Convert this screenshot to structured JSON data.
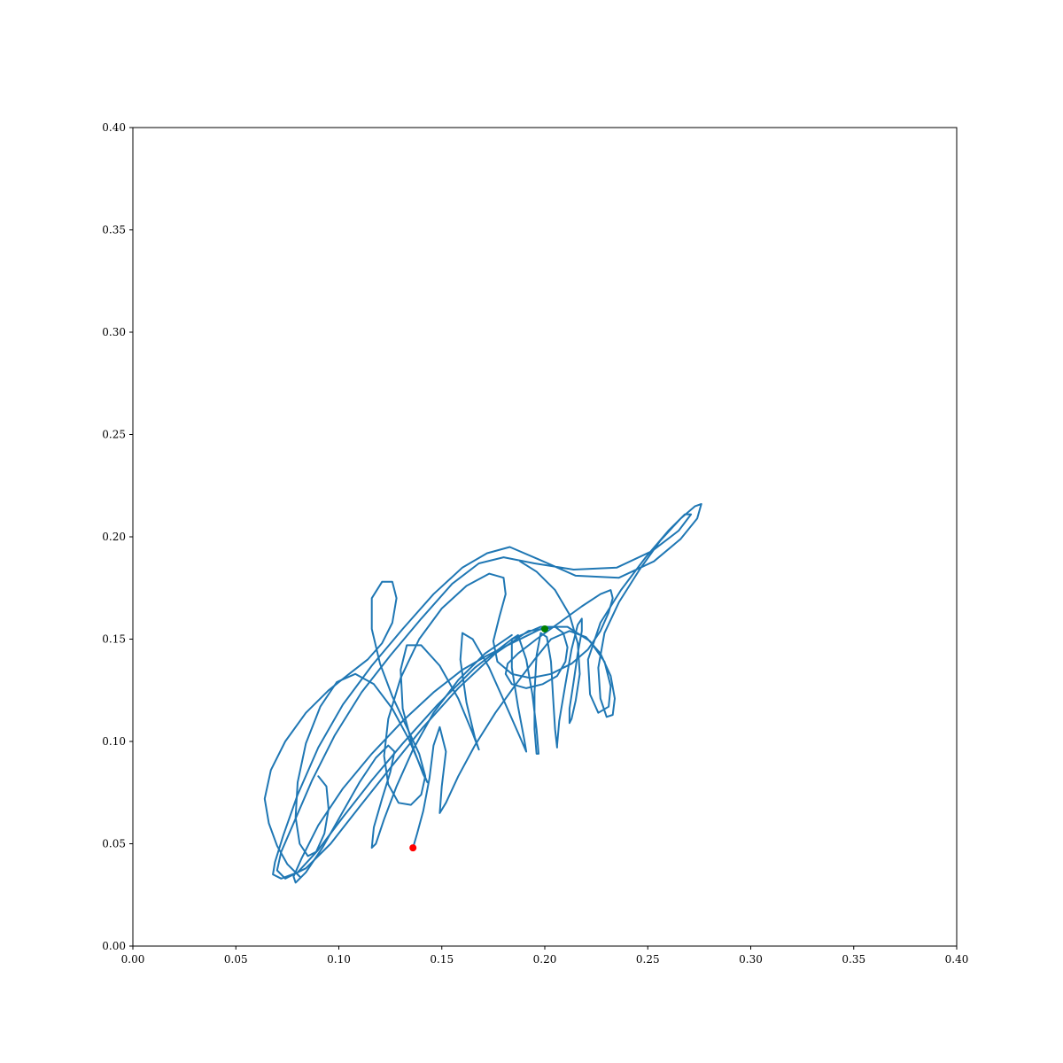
{
  "chart_data": {
    "type": "line",
    "title": "",
    "xlabel": "",
    "ylabel": "",
    "xlim": [
      0.0,
      0.4
    ],
    "ylim": [
      0.0,
      0.4
    ],
    "grid": false,
    "x_ticks": [
      "0.00",
      "0.05",
      "0.10",
      "0.15",
      "0.20",
      "0.25",
      "0.30",
      "0.35",
      "0.40"
    ],
    "y_ticks": [
      "0.00",
      "0.05",
      "0.10",
      "0.15",
      "0.20",
      "0.25",
      "0.30",
      "0.35",
      "0.40"
    ],
    "line_color": "#1f77b4",
    "start_point": {
      "x": 0.136,
      "y": 0.048,
      "color": "#ff0000"
    },
    "end_point": {
      "x": 0.2,
      "y": 0.155,
      "color": "#008000"
    },
    "series": [
      {
        "values": [
          [
            0.136,
            0.048
          ],
          [
            0.138,
            0.055
          ],
          [
            0.141,
            0.066
          ],
          [
            0.144,
            0.082
          ],
          [
            0.146,
            0.098
          ],
          [
            0.149,
            0.107
          ],
          [
            0.152,
            0.095
          ],
          [
            0.15,
            0.078
          ],
          [
            0.149,
            0.065
          ],
          [
            0.152,
            0.07
          ],
          [
            0.158,
            0.083
          ],
          [
            0.166,
            0.098
          ],
          [
            0.176,
            0.114
          ],
          [
            0.186,
            0.128
          ],
          [
            0.195,
            0.14
          ],
          [
            0.203,
            0.15
          ],
          [
            0.212,
            0.154
          ],
          [
            0.22,
            0.151
          ],
          [
            0.227,
            0.143
          ],
          [
            0.232,
            0.132
          ],
          [
            0.234,
            0.121
          ],
          [
            0.233,
            0.113
          ],
          [
            0.23,
            0.112
          ],
          [
            0.227,
            0.121
          ],
          [
            0.226,
            0.136
          ],
          [
            0.229,
            0.153
          ],
          [
            0.236,
            0.168
          ],
          [
            0.246,
            0.184
          ],
          [
            0.256,
            0.198
          ],
          [
            0.266,
            0.209
          ],
          [
            0.273,
            0.215
          ],
          [
            0.276,
            0.216
          ],
          [
            0.274,
            0.209
          ],
          [
            0.266,
            0.199
          ],
          [
            0.253,
            0.188
          ],
          [
            0.236,
            0.18
          ],
          [
            0.215,
            0.181
          ],
          [
            0.197,
            0.189
          ],
          [
            0.183,
            0.195
          ],
          [
            0.172,
            0.192
          ],
          [
            0.16,
            0.185
          ],
          [
            0.146,
            0.172
          ],
          [
            0.131,
            0.155
          ],
          [
            0.116,
            0.137
          ],
          [
            0.102,
            0.118
          ],
          [
            0.09,
            0.097
          ],
          [
            0.08,
            0.074
          ],
          [
            0.073,
            0.054
          ],
          [
            0.069,
            0.041
          ],
          [
            0.068,
            0.035
          ],
          [
            0.072,
            0.033
          ],
          [
            0.08,
            0.036
          ],
          [
            0.09,
            0.047
          ],
          [
            0.102,
            0.063
          ],
          [
            0.116,
            0.081
          ],
          [
            0.131,
            0.099
          ],
          [
            0.148,
            0.118
          ],
          [
            0.166,
            0.136
          ],
          [
            0.184,
            0.15
          ],
          [
            0.198,
            0.156
          ],
          [
            0.211,
            0.156
          ],
          [
            0.222,
            0.149
          ],
          [
            0.229,
            0.139
          ],
          [
            0.232,
            0.127
          ],
          [
            0.231,
            0.117
          ],
          [
            0.226,
            0.114
          ],
          [
            0.222,
            0.123
          ],
          [
            0.221,
            0.14
          ],
          [
            0.227,
            0.158
          ],
          [
            0.237,
            0.174
          ],
          [
            0.249,
            0.19
          ],
          [
            0.26,
            0.203
          ],
          [
            0.268,
            0.211
          ],
          [
            0.271,
            0.211
          ],
          [
            0.265,
            0.203
          ],
          [
            0.252,
            0.193
          ],
          [
            0.235,
            0.185
          ],
          [
            0.214,
            0.184
          ],
          [
            0.195,
            0.187
          ],
          [
            0.18,
            0.19
          ],
          [
            0.168,
            0.187
          ],
          [
            0.155,
            0.177
          ],
          [
            0.14,
            0.16
          ],
          [
            0.125,
            0.142
          ],
          [
            0.111,
            0.124
          ],
          [
            0.098,
            0.103
          ],
          [
            0.087,
            0.081
          ],
          [
            0.078,
            0.06
          ],
          [
            0.072,
            0.046
          ],
          [
            0.07,
            0.037
          ],
          [
            0.074,
            0.033
          ],
          [
            0.084,
            0.038
          ],
          [
            0.096,
            0.05
          ],
          [
            0.11,
            0.068
          ],
          [
            0.125,
            0.087
          ],
          [
            0.141,
            0.107
          ],
          [
            0.158,
            0.126
          ],
          [
            0.176,
            0.143
          ],
          [
            0.192,
            0.154
          ],
          [
            0.2,
            0.155
          ]
        ]
      },
      {
        "values": [
          [
            0.081,
            0.034
          ],
          [
            0.075,
            0.04
          ],
          [
            0.07,
            0.049
          ],
          [
            0.066,
            0.06
          ],
          [
            0.064,
            0.072
          ],
          [
            0.067,
            0.086
          ],
          [
            0.074,
            0.1
          ],
          [
            0.084,
            0.114
          ],
          [
            0.095,
            0.125
          ],
          [
            0.105,
            0.133
          ],
          [
            0.114,
            0.14
          ],
          [
            0.121,
            0.148
          ],
          [
            0.126,
            0.158
          ],
          [
            0.128,
            0.17
          ],
          [
            0.126,
            0.178
          ],
          [
            0.121,
            0.178
          ],
          [
            0.116,
            0.17
          ],
          [
            0.116,
            0.155
          ],
          [
            0.12,
            0.138
          ],
          [
            0.126,
            0.122
          ],
          [
            0.133,
            0.107
          ],
          [
            0.139,
            0.094
          ],
          [
            0.142,
            0.083
          ],
          [
            0.14,
            0.074
          ],
          [
            0.135,
            0.069
          ],
          [
            0.129,
            0.07
          ],
          [
            0.124,
            0.079
          ],
          [
            0.122,
            0.093
          ],
          [
            0.124,
            0.111
          ],
          [
            0.13,
            0.131
          ],
          [
            0.139,
            0.15
          ],
          [
            0.15,
            0.165
          ],
          [
            0.162,
            0.176
          ],
          [
            0.173,
            0.182
          ],
          [
            0.18,
            0.18
          ],
          [
            0.181,
            0.172
          ],
          [
            0.178,
            0.161
          ],
          [
            0.175,
            0.149
          ],
          [
            0.177,
            0.139
          ],
          [
            0.184,
            0.133
          ],
          [
            0.193,
            0.131
          ],
          [
            0.203,
            0.133
          ],
          [
            0.213,
            0.138
          ],
          [
            0.221,
            0.145
          ],
          [
            0.227,
            0.154
          ],
          [
            0.231,
            0.163
          ],
          [
            0.233,
            0.17
          ],
          [
            0.232,
            0.174
          ],
          [
            0.227,
            0.172
          ],
          [
            0.218,
            0.166
          ],
          [
            0.207,
            0.158
          ],
          [
            0.196,
            0.15
          ],
          [
            0.187,
            0.143
          ],
          [
            0.182,
            0.138
          ],
          [
            0.181,
            0.133
          ],
          [
            0.184,
            0.128
          ],
          [
            0.191,
            0.126
          ],
          [
            0.199,
            0.128
          ],
          [
            0.206,
            0.132
          ],
          [
            0.21,
            0.139
          ],
          [
            0.211,
            0.146
          ],
          [
            0.209,
            0.153
          ],
          [
            0.205,
            0.156
          ],
          [
            0.198,
            0.155
          ],
          [
            0.19,
            0.151
          ],
          [
            0.182,
            0.147
          ],
          [
            0.172,
            0.142
          ],
          [
            0.16,
            0.135
          ],
          [
            0.146,
            0.124
          ],
          [
            0.131,
            0.11
          ],
          [
            0.116,
            0.094
          ],
          [
            0.102,
            0.077
          ],
          [
            0.09,
            0.059
          ],
          [
            0.082,
            0.043
          ],
          [
            0.078,
            0.034
          ],
          [
            0.079,
            0.031
          ],
          [
            0.084,
            0.036
          ],
          [
            0.092,
            0.048
          ],
          [
            0.101,
            0.064
          ],
          [
            0.11,
            0.08
          ],
          [
            0.118,
            0.092
          ],
          [
            0.124,
            0.098
          ],
          [
            0.127,
            0.095
          ],
          [
            0.125,
            0.085
          ],
          [
            0.121,
            0.072
          ],
          [
            0.117,
            0.058
          ],
          [
            0.116,
            0.048
          ],
          [
            0.118,
            0.05
          ],
          [
            0.122,
            0.062
          ],
          [
            0.128,
            0.078
          ],
          [
            0.136,
            0.096
          ],
          [
            0.146,
            0.114
          ],
          [
            0.158,
            0.13
          ],
          [
            0.171,
            0.143
          ],
          [
            0.184,
            0.152
          ]
        ]
      },
      {
        "values": [
          [
            0.188,
            0.188
          ],
          [
            0.196,
            0.183
          ],
          [
            0.205,
            0.174
          ],
          [
            0.212,
            0.162
          ],
          [
            0.216,
            0.148
          ],
          [
            0.217,
            0.133
          ],
          [
            0.215,
            0.12
          ],
          [
            0.213,
            0.111
          ],
          [
            0.212,
            0.109
          ],
          [
            0.212,
            0.116
          ],
          [
            0.214,
            0.129
          ],
          [
            0.216,
            0.143
          ],
          [
            0.218,
            0.154
          ],
          [
            0.218,
            0.16
          ],
          [
            0.216,
            0.157
          ],
          [
            0.213,
            0.145
          ],
          [
            0.21,
            0.128
          ],
          [
            0.207,
            0.11
          ],
          [
            0.206,
            0.098
          ],
          [
            0.206,
            0.097
          ],
          [
            0.205,
            0.106
          ],
          [
            0.204,
            0.122
          ],
          [
            0.203,
            0.139
          ],
          [
            0.201,
            0.151
          ],
          [
            0.198,
            0.153
          ],
          [
            0.196,
            0.142
          ],
          [
            0.195,
            0.124
          ],
          [
            0.195,
            0.106
          ],
          [
            0.196,
            0.094
          ],
          [
            0.197,
            0.094
          ],
          [
            0.196,
            0.106
          ],
          [
            0.194,
            0.123
          ],
          [
            0.191,
            0.14
          ],
          [
            0.187,
            0.152
          ],
          [
            0.184,
            0.15
          ],
          [
            0.184,
            0.136
          ],
          [
            0.187,
            0.117
          ],
          [
            0.19,
            0.101
          ],
          [
            0.191,
            0.095
          ],
          [
            0.188,
            0.102
          ],
          [
            0.181,
            0.118
          ],
          [
            0.173,
            0.136
          ],
          [
            0.165,
            0.15
          ],
          [
            0.16,
            0.153
          ],
          [
            0.159,
            0.14
          ],
          [
            0.162,
            0.119
          ],
          [
            0.166,
            0.102
          ],
          [
            0.168,
            0.096
          ],
          [
            0.165,
            0.104
          ],
          [
            0.158,
            0.121
          ],
          [
            0.149,
            0.137
          ],
          [
            0.14,
            0.147
          ],
          [
            0.133,
            0.147
          ],
          [
            0.13,
            0.135
          ],
          [
            0.131,
            0.116
          ],
          [
            0.136,
            0.097
          ],
          [
            0.141,
            0.084
          ],
          [
            0.143,
            0.08
          ],
          [
            0.14,
            0.087
          ],
          [
            0.134,
            0.101
          ],
          [
            0.126,
            0.116
          ],
          [
            0.117,
            0.128
          ],
          [
            0.108,
            0.133
          ],
          [
            0.099,
            0.129
          ],
          [
            0.091,
            0.117
          ],
          [
            0.084,
            0.099
          ],
          [
            0.08,
            0.08
          ],
          [
            0.079,
            0.063
          ],
          [
            0.081,
            0.05
          ],
          [
            0.085,
            0.044
          ],
          [
            0.089,
            0.046
          ],
          [
            0.093,
            0.055
          ],
          [
            0.095,
            0.067
          ],
          [
            0.094,
            0.078
          ],
          [
            0.09,
            0.083
          ]
        ]
      }
    ]
  }
}
